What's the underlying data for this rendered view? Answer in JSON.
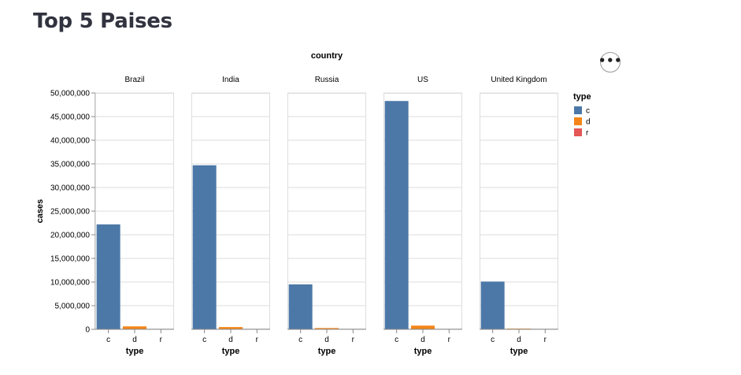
{
  "page": {
    "title": "Top 5 Paises"
  },
  "menu": {
    "icon": "ellipsis-icon",
    "label": "•••"
  },
  "chart_data": {
    "type": "bar",
    "facet_title": "country",
    "facets": [
      "Brazil",
      "India",
      "Russia",
      "US",
      "United Kingdom"
    ],
    "categories": [
      "c",
      "d",
      "r"
    ],
    "xlabel": "type",
    "ylabel": "cases",
    "ylim": [
      0,
      50000000
    ],
    "yticks": [
      0,
      5000000,
      10000000,
      15000000,
      20000000,
      25000000,
      30000000,
      35000000,
      40000000,
      45000000,
      50000000
    ],
    "ytick_labels": [
      "0",
      "5,000,000",
      "10,000,000",
      "15,000,000",
      "20,000,000",
      "25,000,000",
      "30,000,000",
      "35,000,000",
      "40,000,000",
      "45,000,000",
      "50,000,000"
    ],
    "values": {
      "Brazil": [
        22200000,
        620000,
        0
      ],
      "India": [
        34700000,
        480000,
        0
      ],
      "Russia": [
        9500000,
        270000,
        0
      ],
      "US": [
        48300000,
        780000,
        0
      ],
      "United Kingdom": [
        10100000,
        145000,
        0
      ]
    },
    "colors": {
      "c": "#4c78a8",
      "d": "#f58518",
      "r": "#e45756"
    },
    "legend": {
      "title": "type",
      "placement": "right",
      "entries": [
        "c",
        "d",
        "r"
      ]
    },
    "grid": true
  }
}
